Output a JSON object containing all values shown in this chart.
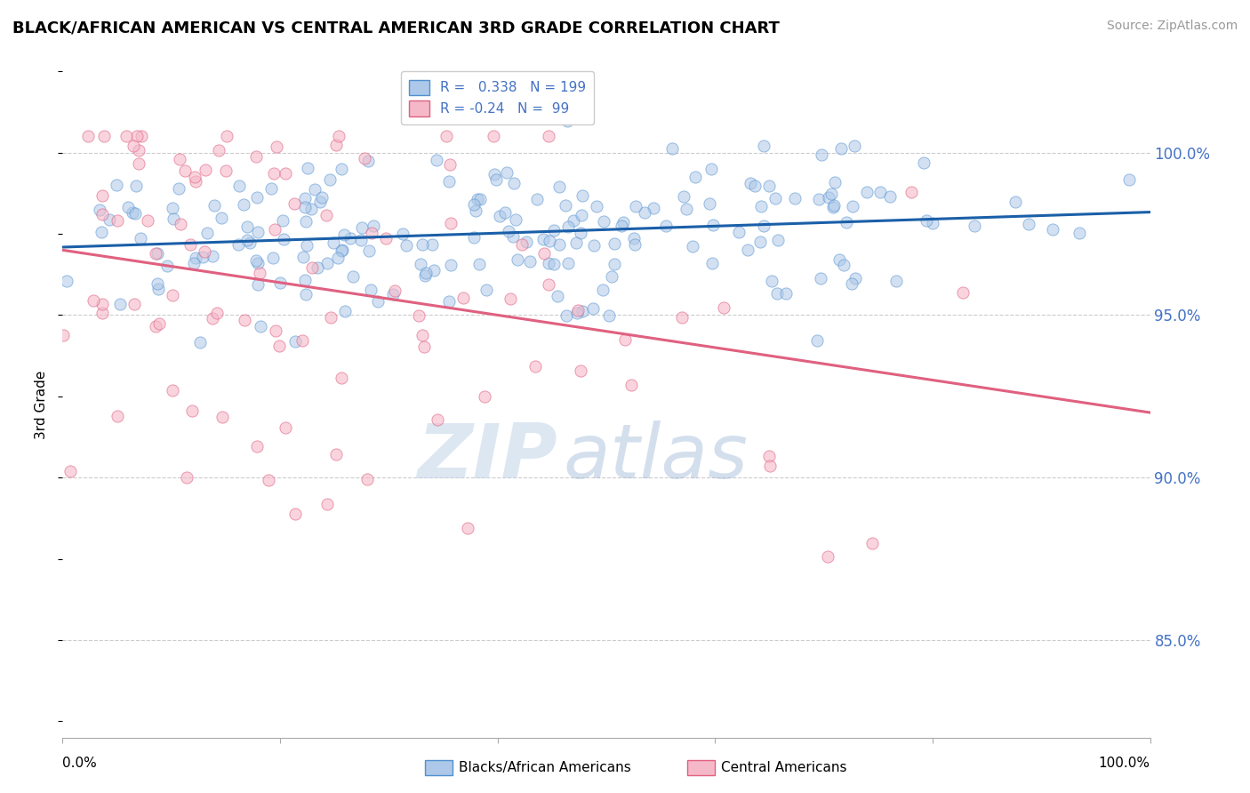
{
  "title": "BLACK/AFRICAN AMERICAN VS CENTRAL AMERICAN 3RD GRADE CORRELATION CHART",
  "source": "Source: ZipAtlas.com",
  "ylabel": "3rd Grade",
  "blue_R": 0.338,
  "blue_N": 199,
  "pink_R": -0.24,
  "pink_N": 99,
  "blue_color": "#adc8e8",
  "blue_edge_color": "#5090d0",
  "blue_line_color": "#1a5fa8",
  "pink_color": "#f5b8c8",
  "pink_edge_color": "#e06080",
  "pink_line_color": "#e06080",
  "blue_label": "Blacks/African Americans",
  "pink_label": "Central Americans",
  "watermark_zip": "ZIP",
  "watermark_atlas": "atlas",
  "title_fontsize": 13,
  "source_fontsize": 10,
  "legend_fontsize": 11,
  "axis_label_color": "#4472c4",
  "background_color": "#ffffff",
  "dot_size": 90,
  "blue_alpha": 0.55,
  "pink_alpha": 0.6,
  "ylim_low": 0.82,
  "ylim_high": 1.025,
  "y_ticks": [
    0.85,
    0.9,
    0.95,
    1.0
  ],
  "y_tick_labels": [
    "85.0%",
    "90.0%",
    "95.0%",
    "100.0%"
  ]
}
